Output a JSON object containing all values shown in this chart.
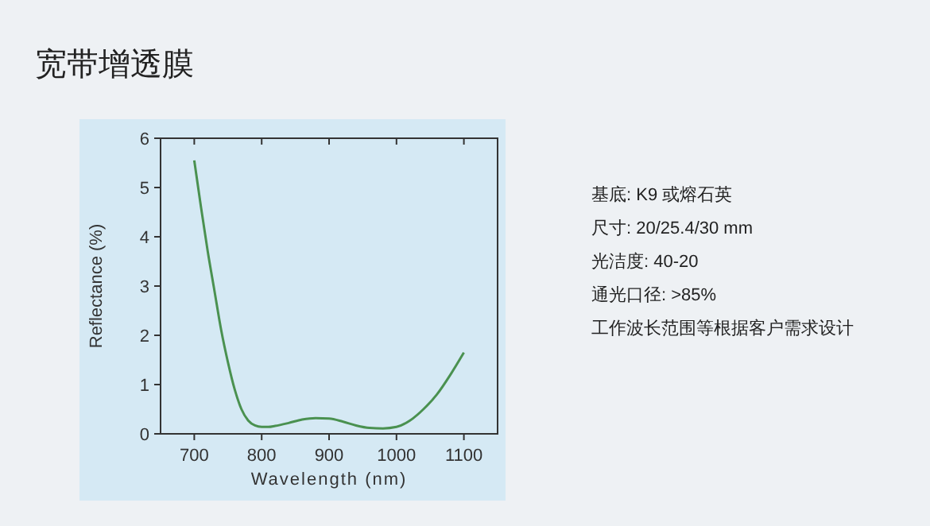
{
  "chart_data": {
    "type": "line",
    "title": "宽带增透膜",
    "xlabel": "Wavelength (nm)",
    "ylabel": "Reflectance (%)",
    "x": [
      700,
      710,
      720,
      730,
      740,
      750,
      760,
      770,
      780,
      790,
      800,
      810,
      820,
      840,
      860,
      880,
      900,
      920,
      940,
      960,
      980,
      1000,
      1020,
      1040,
      1060,
      1080,
      1100
    ],
    "series": [
      {
        "color": "#4a9150",
        "values": [
          5.55,
          4.6,
          3.7,
          2.9,
          2.1,
          1.45,
          0.9,
          0.5,
          0.27,
          0.17,
          0.14,
          0.14,
          0.16,
          0.22,
          0.29,
          0.32,
          0.31,
          0.25,
          0.17,
          0.12,
          0.11,
          0.14,
          0.27,
          0.5,
          0.8,
          1.2,
          1.65
        ]
      }
    ],
    "xlim": [
      650,
      1150
    ],
    "xticks": [
      700,
      800,
      900,
      1000,
      1100
    ],
    "ylim": [
      0,
      6
    ],
    "yticks": [
      0,
      1,
      2,
      3,
      4,
      5,
      6
    ],
    "marker": "none",
    "line_style": "solid",
    "annotations": [
      "基底:  K9 或熔石英",
      "尺寸: 20/25.4/30 mm",
      "光洁度:  40-20",
      "通光口径:  >85%",
      "工作波长范围等根据客户需求设计"
    ]
  }
}
